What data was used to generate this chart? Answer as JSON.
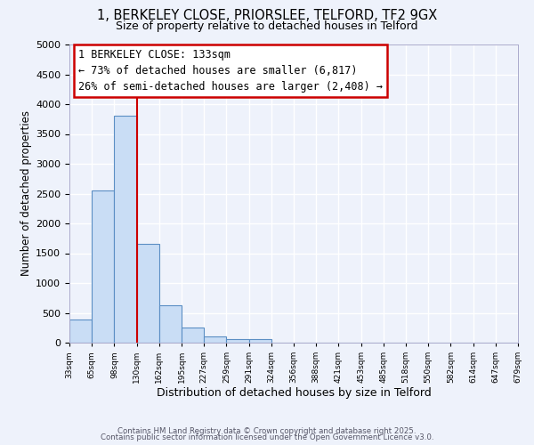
{
  "title": "1, BERKELEY CLOSE, PRIORSLEE, TELFORD, TF2 9GX",
  "subtitle": "Size of property relative to detached houses in Telford",
  "xlabel": "Distribution of detached houses by size in Telford",
  "ylabel": "Number of detached properties",
  "bar_values": [
    390,
    2550,
    3800,
    1650,
    630,
    250,
    110,
    55,
    55,
    0,
    0,
    0,
    0,
    0,
    0,
    0,
    0,
    0,
    0,
    0
  ],
  "bin_labels": [
    "33sqm",
    "65sqm",
    "98sqm",
    "130sqm",
    "162sqm",
    "195sqm",
    "227sqm",
    "259sqm",
    "291sqm",
    "324sqm",
    "356sqm",
    "388sqm",
    "421sqm",
    "453sqm",
    "485sqm",
    "518sqm",
    "550sqm",
    "582sqm",
    "614sqm",
    "647sqm",
    "679sqm"
  ],
  "bar_color": "#c9ddf5",
  "bar_edge_color": "#5b8ec4",
  "vline_x": 3,
  "vline_color": "#cc0000",
  "annotation_line1": "1 BERKELEY CLOSE: 133sqm",
  "annotation_line2": "← 73% of detached houses are smaller (6,817)",
  "annotation_line3": "26% of semi-detached houses are larger (2,408) →",
  "ylim": [
    0,
    5000
  ],
  "yticks": [
    0,
    500,
    1000,
    1500,
    2000,
    2500,
    3000,
    3500,
    4000,
    4500,
    5000
  ],
  "background_color": "#eef2fb",
  "grid_color": "#ffffff",
  "footer_line1": "Contains HM Land Registry data © Crown copyright and database right 2025.",
  "footer_line2": "Contains public sector information licensed under the Open Government Licence v3.0.",
  "title_fontsize": 10.5,
  "subtitle_fontsize": 9,
  "xlabel_fontsize": 9,
  "ylabel_fontsize": 8.5,
  "annotation_fontsize": 8.5
}
